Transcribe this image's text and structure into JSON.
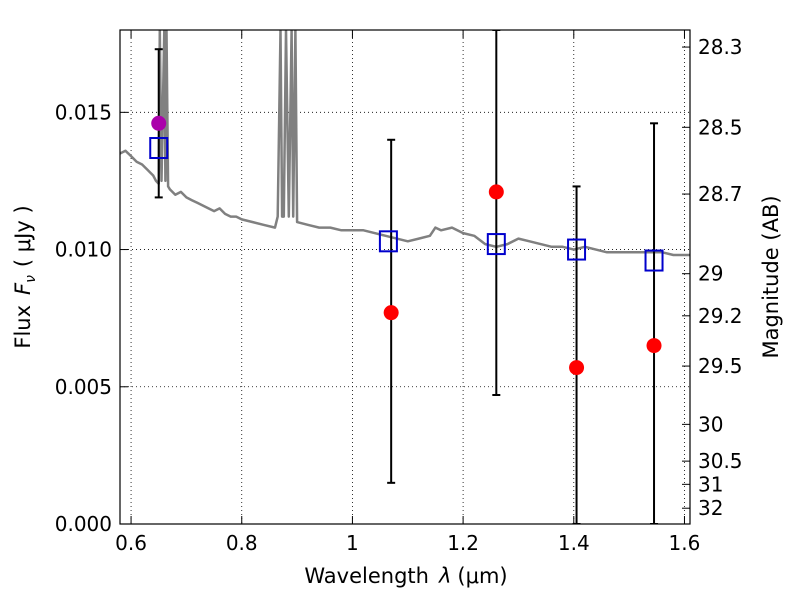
{
  "chart_data": {
    "type": "scatter",
    "xlabel_text": "Wavelength",
    "xlabel_symbol": "λ",
    "xlabel_unit": "(μm)",
    "ylabel_text": "Flux",
    "ylabel_symbol": "F",
    "ylabel_subscript": "ν",
    "ylabel_unit": "( μJy )",
    "y2label": "Magnitude (AB)",
    "xlim": [
      0.58,
      1.61
    ],
    "ylim": [
      0.0,
      0.018
    ],
    "grid": true,
    "x_ticks": [
      {
        "value": 0.6,
        "label": "0.6"
      },
      {
        "value": 0.8,
        "label": "0.8"
      },
      {
        "value": 1.0,
        "label": "1"
      },
      {
        "value": 1.2,
        "label": "1.2"
      },
      {
        "value": 1.4,
        "label": "1.4"
      },
      {
        "value": 1.6,
        "label": "1.6"
      }
    ],
    "y_ticks": [
      {
        "value": 0.0,
        "label": "0.000"
      },
      {
        "value": 0.005,
        "label": "0.005"
      },
      {
        "value": 0.01,
        "label": "0.010"
      },
      {
        "value": 0.015,
        "label": "0.015"
      }
    ],
    "y2_ticks": [
      {
        "value": 28.3,
        "label": "28.3"
      },
      {
        "value": 28.5,
        "label": "28.5"
      },
      {
        "value": 28.7,
        "label": "28.7"
      },
      {
        "value": 29.0,
        "label": "29"
      },
      {
        "value": 29.2,
        "label": "29.2"
      },
      {
        "value": 29.5,
        "label": "29.5"
      },
      {
        "value": 30.0,
        "label": "30"
      },
      {
        "value": 30.5,
        "label": "30.5"
      },
      {
        "value": 31.0,
        "label": "31"
      },
      {
        "value": 32.0,
        "label": "32"
      }
    ],
    "series": [
      {
        "kind": "line",
        "color": "#808080",
        "x": [
          0.58,
          0.59,
          0.6,
          0.61,
          0.62,
          0.63,
          0.635,
          0.64,
          0.645,
          0.65,
          0.652,
          0.655,
          0.66,
          0.662,
          0.664,
          0.667,
          0.67,
          0.68,
          0.69,
          0.7,
          0.71,
          0.72,
          0.73,
          0.74,
          0.75,
          0.76,
          0.77,
          0.78,
          0.79,
          0.8,
          0.82,
          0.84,
          0.86,
          0.865,
          0.87,
          0.873,
          0.876,
          0.88,
          0.885,
          0.89,
          0.893,
          0.897,
          0.9,
          0.92,
          0.94,
          0.96,
          0.98,
          1.0,
          1.02,
          1.04,
          1.06,
          1.08,
          1.1,
          1.12,
          1.14,
          1.15,
          1.16,
          1.18,
          1.2,
          1.22,
          1.24,
          1.26,
          1.28,
          1.3,
          1.32,
          1.34,
          1.36,
          1.38,
          1.4,
          1.42,
          1.44,
          1.46,
          1.48,
          1.5,
          1.52,
          1.54,
          1.56,
          1.58,
          1.6,
          1.61
        ],
        "y": [
          0.0135,
          0.0136,
          0.0134,
          0.0132,
          0.0131,
          0.0129,
          0.0128,
          0.0127,
          0.0125,
          0.0124,
          0.018,
          0.0125,
          0.018,
          0.0125,
          0.018,
          0.0123,
          0.0122,
          0.012,
          0.0121,
          0.0119,
          0.0118,
          0.0117,
          0.0116,
          0.0115,
          0.0114,
          0.0115,
          0.0113,
          0.0112,
          0.0112,
          0.0111,
          0.011,
          0.0109,
          0.0108,
          0.0112,
          0.018,
          0.0112,
          0.0112,
          0.018,
          0.0112,
          0.018,
          0.0112,
          0.018,
          0.011,
          0.0109,
          0.0108,
          0.0108,
          0.0107,
          0.0107,
          0.0107,
          0.0106,
          0.0105,
          0.0104,
          0.0103,
          0.0104,
          0.0105,
          0.0108,
          0.0107,
          0.0108,
          0.0106,
          0.0105,
          0.0102,
          0.0101,
          0.0102,
          0.0104,
          0.0103,
          0.0102,
          0.0101,
          0.0101,
          0.01,
          0.0101,
          0.01,
          0.0099,
          0.0099,
          0.0099,
          0.0099,
          0.0099,
          0.0099,
          0.0098,
          0.0098,
          0.0098
        ]
      },
      {
        "kind": "errorbar",
        "color": "#000000",
        "x": [
          0.65,
          1.07,
          1.26,
          1.405,
          1.545
        ],
        "y": [
          0.0146,
          0.0077,
          0.0121,
          0.0057,
          0.0065
        ],
        "yerr_low": [
          0.0119,
          0.0015,
          0.0047,
          0.0,
          0.0
        ],
        "yerr_high": [
          0.0173,
          0.014,
          0.018,
          0.0123,
          0.0146
        ]
      },
      {
        "kind": "scatter",
        "marker": "circle",
        "color": "#ff0000",
        "x": [
          1.07,
          1.26,
          1.405,
          1.545
        ],
        "y": [
          0.0077,
          0.0121,
          0.0057,
          0.0065
        ]
      },
      {
        "kind": "scatter",
        "marker": "circle",
        "color": "#aa00aa",
        "x": [
          0.65
        ],
        "y": [
          0.0146
        ]
      },
      {
        "kind": "scatter",
        "marker": "open-square",
        "color": "#0000cc",
        "x": [
          0.65,
          1.065,
          1.26,
          1.405,
          1.545
        ],
        "y": [
          0.0137,
          0.0103,
          0.0102,
          0.01,
          0.0096
        ]
      }
    ]
  }
}
